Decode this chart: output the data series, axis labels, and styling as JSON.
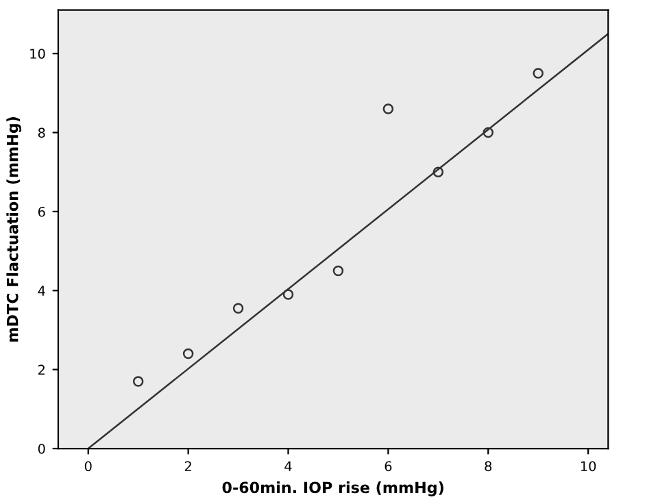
{
  "chart_data": {
    "type": "scatter",
    "xlabel": "0-60min. IOP rise (mmHg)",
    "ylabel": "mDTC Flactuation (mmHg)",
    "xlim": [
      -0.6,
      10.4
    ],
    "ylim": [
      0,
      11.1
    ],
    "xticks": [
      0,
      2,
      4,
      6,
      8,
      10
    ],
    "yticks": [
      0,
      2,
      4,
      6,
      8,
      10
    ],
    "grid": false,
    "series": [
      {
        "color": "#333333",
        "marker": "circle",
        "x": [
          1,
          2,
          3,
          4,
          5,
          6,
          7,
          8,
          9
        ],
        "values": [
          1.7,
          2.4,
          3.55,
          3.9,
          4.5,
          8.6,
          7.0,
          8.0,
          9.5
        ]
      },
      {
        "type": "line",
        "color": "#333333",
        "marker": "none",
        "line_style": "solid",
        "x": [
          0,
          10.4
        ],
        "values": [
          0,
          10.5
        ]
      }
    ]
  }
}
